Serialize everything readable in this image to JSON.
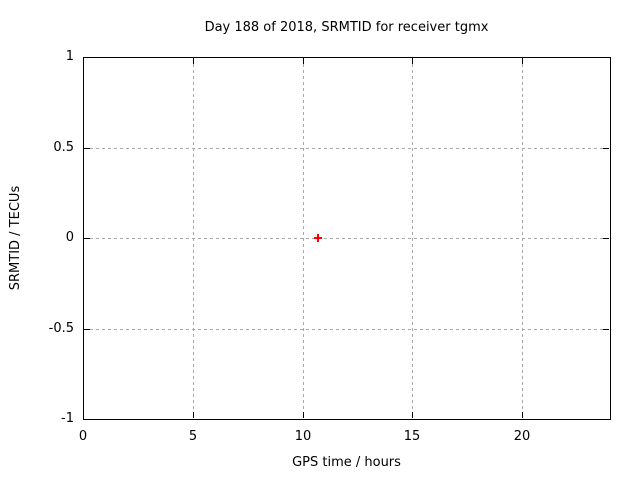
{
  "chart_data": {
    "type": "scatter",
    "title": "Day 188 of 2018, SRMTID for receiver tgmx",
    "xlabel": "GPS time / hours",
    "ylabel": "SRMTID / TECUs",
    "xlim": [
      0,
      24
    ],
    "ylim": [
      -1,
      1
    ],
    "xticks": [
      0,
      5,
      10,
      15,
      20
    ],
    "yticks": [
      1,
      0.5,
      0,
      -0.5,
      -1
    ],
    "grid": true,
    "legend": "none",
    "series": [
      {
        "name": "SRMTID",
        "marker": "plus",
        "color": "#ff0000",
        "points": [
          {
            "x": 10.7,
            "y": 0.0
          }
        ]
      }
    ]
  },
  "colors": {
    "background": "#ffffff",
    "border": "#000000",
    "grid": "#a8a8a8",
    "text": "#000000"
  }
}
